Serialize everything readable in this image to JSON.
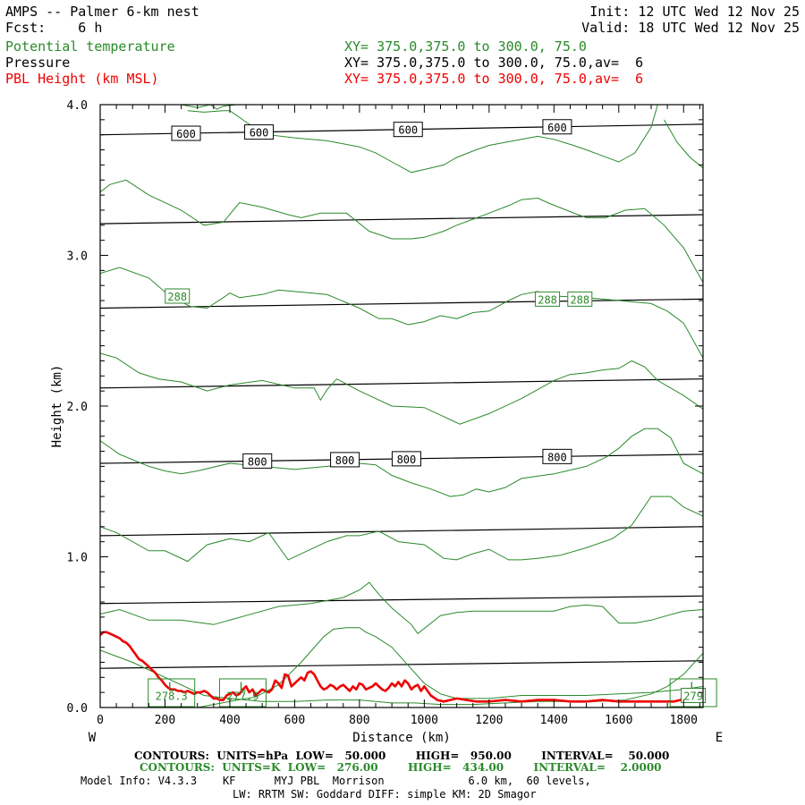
{
  "header": {
    "title": "AMPS -- Palmer 6-km nest",
    "fcst": "Fcst:    6 h",
    "init": "Init: 12 UTC Wed 12 Nov 25",
    "valid": "Valid: 18 UTC Wed 12 Nov 25",
    "field1_label": "Potential temperature",
    "field1_xy": "XY= 375.0,375.0 to 300.0, 75.0",
    "field2_label": "Pressure",
    "field2_xy": "XY= 375.0,375.0 to 300.0, 75.0,av=  6",
    "field3_label": "PBL Height (km MSL)",
    "field3_xy": "XY= 375.0,375.0 to 300.0, 75.0,av=  6"
  },
  "footer": {
    "contours1": "CONTOURS:  UNITS=hPa  LOW=   50.000        HIGH=   950.00        INTERVAL=    50.000",
    "contours2": "CONTOURS:  UNITS=K  LOW=   276.00        HIGH=   434.00        INTERVAL=    2.0000",
    "model1": "Model Info: V4.3.3    KF      MYJ PBL  Morrison             6.0 km,  60 levels,",
    "model2": "LW: RRTM SW: Goddard DIFF: simple KM: 2D Smagor"
  },
  "colors": {
    "pressure": "#000000",
    "theta": "#2a8a2a",
    "pbl": "#ee0000"
  },
  "chart_data": {
    "type": "line",
    "xlabel": "Distance (km)",
    "ylabel": "Height (km)",
    "xlim": [
      0,
      1860
    ],
    "ylim": [
      0,
      4.0
    ],
    "x_ticks": [
      0,
      200,
      400,
      600,
      800,
      1000,
      1200,
      1400,
      1600,
      1800
    ],
    "y_ticks": [
      "0.0",
      "1.0",
      "2.0",
      "3.0",
      "4.0"
    ],
    "x_left_label": "W",
    "x_right_label": "E",
    "pressure_lines": [
      {
        "start": 3.8,
        "end": 3.87,
        "label": "600",
        "label_x": [
          265,
          490,
          950,
          1410
        ]
      },
      {
        "start": 3.21,
        "end": 3.27
      },
      {
        "start": 2.65,
        "end": 2.71
      },
      {
        "start": 2.12,
        "end": 2.18
      },
      {
        "start": 1.62,
        "end": 1.68,
        "label": "800",
        "label_x": [
          485,
          755,
          945,
          1410
        ]
      },
      {
        "start": 1.14,
        "end": 1.2
      },
      {
        "start": 0.69,
        "end": 0.74
      },
      {
        "start": 0.26,
        "end": 0.31
      }
    ],
    "theta_lines": [
      {
        "x": [
          0,
          100,
          200,
          320,
          400,
          500,
          600,
          700,
          800,
          900,
          970,
          1050,
          1150,
          1250,
          1350,
          1430,
          1530,
          1620,
          1700,
          1750,
          1800,
          1860
        ],
        "y": [
          0.38,
          0.3,
          0.2,
          0.08,
          0.06,
          0.04,
          0.04,
          0.05,
          0.05,
          0.03,
          0.03,
          0.02,
          0.02,
          0.03,
          0.04,
          0.04,
          0.04,
          0.05,
          0.09,
          0.14,
          0.22,
          0.36
        ]
      },
      {
        "x": [
          0,
          80,
          180,
          250,
          300,
          350,
          400,
          480,
          550,
          620,
          690,
          720,
          760,
          800,
          820,
          850,
          900,
          950,
          1000,
          1050,
          1100,
          1150,
          1200,
          1300,
          1400,
          1500,
          1600,
          1700,
          1800,
          1860
        ],
        "y": [
          0.0,
          0.0,
          0.0,
          0.0,
          0.0,
          0.02,
          0.04,
          0.07,
          0.15,
          0.3,
          0.47,
          0.52,
          0.53,
          0.53,
          0.5,
          0.47,
          0.4,
          0.28,
          0.16,
          0.09,
          0.06,
          0.06,
          0.06,
          0.08,
          0.08,
          0.08,
          0.09,
          0.1,
          0.12,
          0.14
        ]
      },
      {
        "x": [
          0,
          60,
          150,
          250,
          350,
          450,
          550,
          650,
          750,
          800,
          830,
          860,
          900,
          960,
          980,
          1050,
          1100,
          1150,
          1200,
          1300,
          1400,
          1450,
          1500,
          1550,
          1600,
          1650,
          1700,
          1750,
          1800,
          1860
        ],
        "y": [
          0.62,
          0.65,
          0.58,
          0.58,
          0.55,
          0.61,
          0.67,
          0.69,
          0.73,
          0.78,
          0.83,
          0.75,
          0.66,
          0.55,
          0.49,
          0.61,
          0.63,
          0.64,
          0.64,
          0.64,
          0.64,
          0.67,
          0.68,
          0.67,
          0.56,
          0.56,
          0.58,
          0.61,
          0.64,
          0.65
        ]
      },
      {
        "x": [
          0,
          50,
          150,
          200,
          270,
          330,
          400,
          460,
          520,
          580,
          650,
          700,
          760,
          800,
          860,
          920,
          1000,
          1060,
          1100,
          1150,
          1200,
          1260,
          1300,
          1350,
          1420,
          1500,
          1580,
          1640,
          1700,
          1760,
          1800,
          1860
        ],
        "y": [
          1.2,
          1.16,
          1.04,
          1.04,
          0.97,
          1.08,
          1.12,
          1.1,
          1.16,
          0.98,
          1.05,
          1.1,
          1.14,
          1.14,
          1.17,
          1.1,
          1.08,
          0.99,
          0.98,
          1.02,
          1.05,
          0.98,
          0.98,
          0.99,
          1.01,
          1.06,
          1.12,
          1.21,
          1.4,
          1.4,
          1.33,
          1.27
        ]
      },
      {
        "x": [
          0,
          60,
          150,
          200,
          250,
          300,
          400,
          500,
          600,
          700,
          800,
          850,
          900,
          960,
          1020,
          1080,
          1120,
          1160,
          1200,
          1250,
          1300,
          1400,
          1500,
          1560,
          1600,
          1640,
          1680,
          1720,
          1760,
          1800,
          1860
        ],
        "y": [
          1.77,
          1.68,
          1.6,
          1.57,
          1.55,
          1.57,
          1.62,
          1.6,
          1.58,
          1.6,
          1.62,
          1.61,
          1.54,
          1.49,
          1.45,
          1.4,
          1.41,
          1.45,
          1.43,
          1.46,
          1.52,
          1.55,
          1.6,
          1.66,
          1.72,
          1.8,
          1.85,
          1.85,
          1.79,
          1.62,
          1.55
        ]
      },
      {
        "x": [
          0,
          50,
          120,
          180,
          250,
          330,
          400,
          500,
          600,
          660,
          680,
          700,
          730,
          800,
          900,
          1000,
          1050,
          1110,
          1200,
          1300,
          1400,
          1450,
          1500,
          1550,
          1600,
          1640,
          1680,
          1720,
          1760,
          1800,
          1860
        ],
        "y": [
          2.35,
          2.32,
          2.22,
          2.18,
          2.16,
          2.1,
          2.14,
          2.17,
          2.12,
          2.12,
          2.04,
          2.11,
          2.18,
          2.1,
          2.0,
          1.99,
          1.94,
          1.88,
          1.95,
          2.05,
          2.17,
          2.21,
          2.22,
          2.24,
          2.25,
          2.3,
          2.26,
          2.17,
          2.12,
          2.07,
          1.98
        ]
      },
      {
        "x": [
          0,
          60,
          150,
          220,
          280,
          330,
          380,
          400,
          430,
          500,
          550,
          600,
          700,
          800,
          860,
          900,
          950,
          1000,
          1050,
          1100,
          1150,
          1200,
          1260,
          1300,
          1350,
          1400,
          1500,
          1600,
          1700,
          1750,
          1800,
          1860
        ],
        "y": [
          2.88,
          2.92,
          2.85,
          2.72,
          2.66,
          2.65,
          2.72,
          2.75,
          2.72,
          2.74,
          2.77,
          2.76,
          2.74,
          2.65,
          2.58,
          2.58,
          2.54,
          2.56,
          2.6,
          2.58,
          2.62,
          2.63,
          2.7,
          2.74,
          2.76,
          2.73,
          2.72,
          2.7,
          2.68,
          2.63,
          2.55,
          2.32
        ]
      },
      {
        "x": [
          0,
          30,
          80,
          150,
          250,
          320,
          380,
          430,
          500,
          580,
          620,
          680,
          760,
          830,
          900,
          960,
          1000,
          1060,
          1100,
          1150,
          1200,
          1260,
          1300,
          1350,
          1380,
          1450,
          1500,
          1560,
          1620,
          1680,
          1740,
          1800,
          1860
        ],
        "y": [
          3.42,
          3.47,
          3.5,
          3.4,
          3.3,
          3.2,
          3.22,
          3.35,
          3.32,
          3.27,
          3.25,
          3.28,
          3.28,
          3.16,
          3.11,
          3.11,
          3.12,
          3.16,
          3.2,
          3.24,
          3.28,
          3.33,
          3.37,
          3.38,
          3.35,
          3.29,
          3.25,
          3.25,
          3.3,
          3.31,
          3.2,
          3.05,
          2.82
        ]
      },
      {
        "x": [
          270,
          320,
          380,
          400,
          440,
          480,
          520,
          600,
          700,
          800,
          850,
          900,
          960,
          1000,
          1060,
          1100,
          1160,
          1200,
          1250,
          1300,
          1350,
          1400,
          1460,
          1500,
          1550,
          1600,
          1650,
          1700,
          1720
        ],
        "y": [
          3.96,
          3.95,
          3.96,
          3.96,
          3.9,
          3.84,
          3.8,
          3.78,
          3.76,
          3.72,
          3.68,
          3.62,
          3.55,
          3.57,
          3.6,
          3.65,
          3.7,
          3.73,
          3.75,
          3.77,
          3.79,
          3.77,
          3.73,
          3.7,
          3.66,
          3.62,
          3.68,
          3.85,
          4.0
        ]
      },
      {
        "x": [
          250,
          300,
          340,
          360,
          380,
          420
        ],
        "y": [
          4.0,
          3.98,
          4.0,
          3.97,
          3.99,
          4.0
        ]
      },
      {
        "x": [
          1740,
          1780,
          1820,
          1860
        ],
        "y": [
          3.9,
          3.75,
          3.65,
          3.58
        ]
      }
    ],
    "theta_labels": [
      {
        "text": "288",
        "x": 238,
        "y": 2.73
      },
      {
        "text": "288",
        "x": 1380,
        "y": 2.71
      },
      {
        "text": "288",
        "x": 1480,
        "y": 2.71
      },
      {
        "text": "278.3",
        "x": 220,
        "y": 0.08
      },
      {
        "text": "277.9",
        "x": 440,
        "y": 0.08
      },
      {
        "text": "279",
        "x": 1830,
        "y": 0.08
      }
    ],
    "low_markers": [
      {
        "text": "L",
        "x": 220
      },
      {
        "text": "L",
        "x": 440
      },
      {
        "text": "L",
        "x": 1830
      }
    ],
    "pbl": {
      "x": [
        0,
        10,
        20,
        30,
        40,
        50,
        60,
        70,
        80,
        90,
        100,
        110,
        120,
        130,
        140,
        150,
        160,
        170,
        180,
        190,
        200,
        210,
        220,
        230,
        240,
        250,
        260,
        270,
        280,
        290,
        300,
        310,
        320,
        330,
        340,
        350,
        360,
        370,
        380,
        390,
        400,
        410,
        420,
        430,
        440,
        450,
        460,
        470,
        480,
        490,
        500,
        510,
        520,
        530,
        540,
        550,
        560,
        570,
        580,
        590,
        600,
        610,
        620,
        630,
        640,
        650,
        660,
        670,
        680,
        690,
        700,
        710,
        720,
        730,
        740,
        750,
        760,
        770,
        780,
        790,
        800,
        810,
        820,
        830,
        840,
        850,
        860,
        870,
        880,
        890,
        900,
        910,
        920,
        930,
        940,
        950,
        960,
        970,
        980,
        990,
        1000,
        1020,
        1040,
        1060,
        1080,
        1100,
        1130,
        1160,
        1200,
        1250,
        1300,
        1350,
        1400,
        1450,
        1500,
        1550,
        1600,
        1650,
        1700,
        1750,
        1770,
        1790,
        1800,
        1810,
        1820,
        1830,
        1840,
        1850,
        1860
      ],
      "y": [
        0.48,
        0.5,
        0.5,
        0.49,
        0.48,
        0.47,
        0.46,
        0.44,
        0.43,
        0.41,
        0.38,
        0.35,
        0.32,
        0.31,
        0.29,
        0.27,
        0.25,
        0.23,
        0.2,
        0.18,
        0.15,
        0.13,
        0.12,
        0.12,
        0.11,
        0.11,
        0.1,
        0.11,
        0.1,
        0.09,
        0.1,
        0.1,
        0.11,
        0.1,
        0.08,
        0.06,
        0.06,
        0.05,
        0.05,
        0.08,
        0.09,
        0.1,
        0.08,
        0.09,
        0.12,
        0.14,
        0.1,
        0.12,
        0.08,
        0.1,
        0.12,
        0.11,
        0.1,
        0.12,
        0.18,
        0.16,
        0.13,
        0.22,
        0.21,
        0.14,
        0.16,
        0.18,
        0.2,
        0.18,
        0.23,
        0.24,
        0.22,
        0.18,
        0.14,
        0.12,
        0.13,
        0.15,
        0.14,
        0.12,
        0.14,
        0.15,
        0.13,
        0.11,
        0.14,
        0.12,
        0.16,
        0.15,
        0.12,
        0.13,
        0.14,
        0.16,
        0.14,
        0.12,
        0.11,
        0.13,
        0.16,
        0.14,
        0.17,
        0.14,
        0.18,
        0.16,
        0.12,
        0.14,
        0.15,
        0.11,
        0.14,
        0.08,
        0.05,
        0.04,
        0.05,
        0.06,
        0.05,
        0.04,
        0.04,
        0.05,
        0.04,
        0.05,
        0.05,
        0.04,
        0.04,
        0.05,
        0.04,
        0.04,
        0.04,
        0.04,
        0.04,
        0.05,
        0.06,
        0.06,
        0.05,
        0.08,
        0.07,
        0.09,
        0.05
      ]
    }
  }
}
